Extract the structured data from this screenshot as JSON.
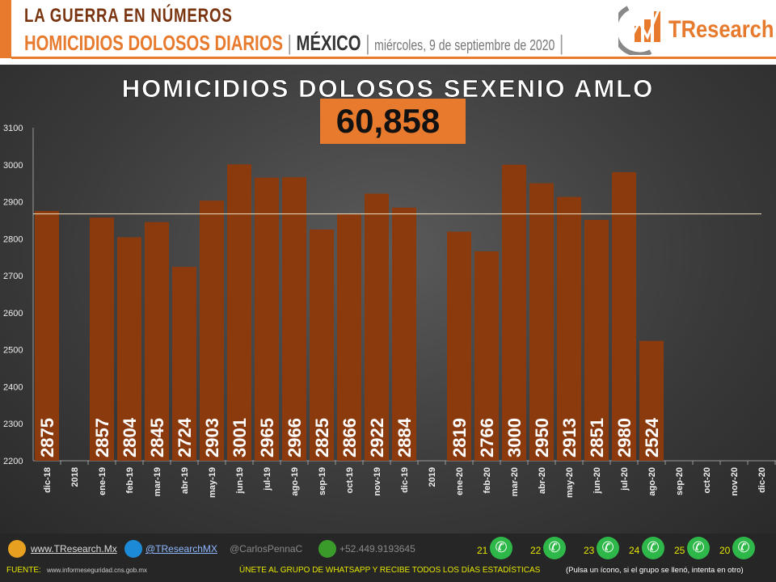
{
  "header": {
    "line1": "LA GUERRA EN NÚMEROS",
    "line2": "HOMICIDIOS DOLOSOS DIARIOS",
    "sep": "|",
    "country": "MÉXICO",
    "date": "miércoles, 9 de septiembre de 2020",
    "logo_text": "TResearch",
    "accent": "#e87a2e"
  },
  "chart_data": {
    "type": "bar",
    "title": "HOMICIDIOS DOLOSOS SEXENIO AMLO",
    "total": "60,858",
    "categories": [
      "dic-18",
      "2018",
      "ene-19",
      "feb-19",
      "mar-19",
      "abr-19",
      "may-19",
      "jun-19",
      "jul-19",
      "ago-19",
      "sep-19",
      "oct-19",
      "nov-19",
      "dic-19",
      "2019",
      "ene-20",
      "feb-20",
      "mar-20",
      "abr-20",
      "may-20",
      "jun-20",
      "jul-20",
      "ago-20",
      "sep-20",
      "oct-20",
      "nov-20",
      "dic-20"
    ],
    "values": [
      2875,
      null,
      2857,
      2804,
      2845,
      2724,
      2903,
      3001,
      2965,
      2966,
      2825,
      2866,
      2922,
      2884,
      null,
      2819,
      2766,
      3000,
      2950,
      2913,
      2851,
      2980,
      2524,
      null,
      null,
      null,
      null
    ],
    "reference_line": 2867,
    "ylim": [
      2200,
      3100
    ],
    "yticks": [
      2200,
      2300,
      2400,
      2500,
      2600,
      2700,
      2800,
      2900,
      3000,
      3100
    ],
    "bar_color": "#8b3a0e",
    "grid": false
  },
  "footer": {
    "web": "www.TResearch.Mx",
    "twitter": "@TResearchMX",
    "user": "@CarlosPennaC",
    "phone": "+52.449.9193645",
    "groups": [
      "21",
      "22",
      "23",
      "24",
      "25",
      "20"
    ],
    "source_label": "FUENTE:",
    "source": "www.informeseguridad.cns.gob.mx",
    "cta": "ÚNETE AL GRUPO DE WHATSAPP Y RECIBE TODOS LOS DÍAS ESTADÍSTICAS",
    "note": "(Pulsa un ícono, si el grupo se llenó, intenta en otro)"
  }
}
